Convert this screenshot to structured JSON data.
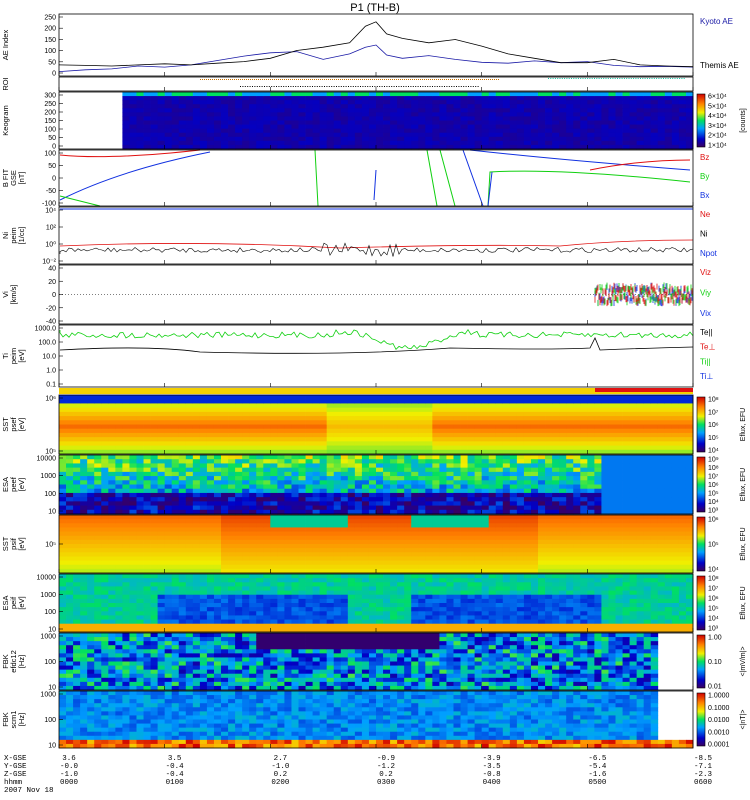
{
  "title": "P1 (TH-B)",
  "colors": {
    "kyoto": "#1a1aa6",
    "themis": "#000000",
    "red": "#e01010",
    "green": "#10d010",
    "blue": "#1030e0",
    "black": "#000000",
    "orange": "#c87000"
  },
  "chart_data": [
    {
      "type": "line",
      "panel": "ae",
      "ylabel": "AE Index",
      "yticks": [
        "250",
        "200",
        "150",
        "100",
        "50",
        "0"
      ],
      "ylim": [
        -20,
        260
      ],
      "x": [
        0,
        0.25,
        0.5,
        0.75,
        1.0,
        1.25,
        1.5,
        1.75,
        2.0,
        2.25,
        2.5,
        2.75,
        2.9,
        3.0,
        3.1,
        3.25,
        3.5,
        3.75,
        4.0,
        4.25,
        4.5,
        4.75,
        5.0,
        5.25,
        5.5,
        5.75,
        6.0
      ],
      "series": [
        {
          "name": "Kyoto AE",
          "color": "#1a1aa6",
          "values": [
            0,
            8,
            12,
            25,
            20,
            30,
            50,
            70,
            85,
            90,
            55,
            80,
            110,
            120,
            75,
            60,
            72,
            55,
            42,
            38,
            48,
            40,
            45,
            28,
            22,
            24,
            20
          ]
        },
        {
          "name": "Themis AE",
          "color": "#000000",
          "values": [
            30,
            28,
            25,
            30,
            35,
            30,
            38,
            45,
            60,
            95,
            110,
            130,
            205,
            225,
            170,
            150,
            130,
            145,
            115,
            80,
            60,
            40,
            40,
            55,
            30,
            25,
            22
          ]
        }
      ]
    },
    {
      "type": "line",
      "panel": "roi",
      "ylabel": "ROI"
    },
    {
      "type": "heatmap",
      "panel": "keogram",
      "ylabel": "Keogram",
      "yticks": [
        "300",
        "250",
        "200",
        "150",
        "100",
        "50",
        "0"
      ],
      "colorbar": {
        "label": "[counts]",
        "ticks": [
          "6×10⁴",
          "5×10⁴",
          "4×10⁴",
          "3×10⁴",
          "2×10⁴",
          "1×10⁴"
        ]
      }
    },
    {
      "type": "line",
      "panel": "bfit",
      "ylabel": "B FIT\nGSE\n[nT]",
      "yticks": [
        "100",
        "50",
        "0",
        "-50",
        "-100"
      ],
      "ylim": [
        -100,
        100
      ],
      "series": [
        {
          "name": "Bz",
          "color": "#e01010"
        },
        {
          "name": "By",
          "color": "#10d010"
        },
        {
          "name": "Bx",
          "color": "#1030e0"
        }
      ]
    },
    {
      "type": "line",
      "panel": "ni",
      "ylabel": "Ni\npeim\n[1/cc]",
      "yticks": [
        "10⁴",
        "10²",
        "10⁰",
        "10⁻²"
      ],
      "series": [
        {
          "name": "Ne",
          "color": "#e01010"
        },
        {
          "name": "Ni",
          "color": "#000000"
        },
        {
          "name": "Npot",
          "color": "#1030e0"
        }
      ]
    },
    {
      "type": "line",
      "panel": "vi",
      "ylabel": "Vi\n[km/s]",
      "yticks": [
        "40",
        "20",
        "0",
        "-20",
        "-40"
      ],
      "ylim": [
        -50,
        50
      ],
      "series": [
        {
          "name": "Viz",
          "color": "#e01010"
        },
        {
          "name": "Viy",
          "color": "#10d010"
        },
        {
          "name": "Vix",
          "color": "#1030e0"
        }
      ]
    },
    {
      "type": "line",
      "panel": "ti",
      "ylabel": "Ti\npeim\n[eV]",
      "yticks": [
        "1000.0",
        "100.0",
        "10.0",
        "1.0",
        "0.1"
      ],
      "series": [
        {
          "name": "Te||",
          "color": "#000000"
        },
        {
          "name": "Te⊥",
          "color": "#e01010"
        },
        {
          "name": "Ti||",
          "color": "#10d010"
        },
        {
          "name": "Ti⊥",
          "color": "#1030e0"
        }
      ]
    },
    {
      "type": "heatmap",
      "panel": "sste",
      "ylabel": "SST\npsef\n[eV]",
      "yticks": [
        "10⁶",
        "10⁵"
      ],
      "colorbar": {
        "label": "Eflux, EFU",
        "ticks": [
          "10⁸",
          "10⁷",
          "10⁶",
          "10⁵",
          "10⁴"
        ]
      }
    },
    {
      "type": "heatmap",
      "panel": "esae",
      "ylabel": "ESA\npeef\n[eV]",
      "yticks": [
        "10000",
        "1000",
        "100",
        "10"
      ],
      "colorbar": {
        "label": "Eflux, EFU",
        "ticks": [
          "10⁹",
          "10⁸",
          "10⁷",
          "10⁶",
          "10⁵",
          "10⁴",
          "10³"
        ]
      }
    },
    {
      "type": "heatmap",
      "panel": "ssti",
      "ylabel": "SST\npsif\n[eV]",
      "yticks": [
        "10⁵"
      ],
      "colorbar": {
        "label": "Eflux, EFU",
        "ticks": [
          "10⁶",
          "10⁵",
          "10⁴"
        ]
      }
    },
    {
      "type": "heatmap",
      "panel": "esai",
      "ylabel": "ESA\npeif\n[eV]",
      "yticks": [
        "10000",
        "1000",
        "100",
        "10"
      ],
      "colorbar": {
        "label": "Eflux, EFU",
        "ticks": [
          "10⁸",
          "10⁷",
          "10⁶",
          "10⁵",
          "10⁴",
          "10³"
        ]
      }
    },
    {
      "type": "heatmap",
      "panel": "fbk1",
      "ylabel": "FBK\nefdc12\n[Hz]",
      "yticks": [
        "1000",
        "100",
        "10"
      ],
      "colorbar": {
        "label": "<|mV/m|>",
        "ticks": [
          "1.00",
          "0.10",
          "0.01"
        ]
      }
    },
    {
      "type": "heatmap",
      "panel": "fbk2",
      "ylabel": "FBK\nscm1\n[Hz]",
      "yticks": [
        "1000",
        "100",
        "10"
      ],
      "colorbar": {
        "label": "<|nT|>",
        "ticks": [
          "1.0000",
          "0.1000",
          "0.0100",
          "0.0010",
          "0.0001"
        ]
      }
    }
  ],
  "footer": {
    "rows": [
      "X-GSE",
      "Y-GSE",
      "Z-GSE",
      "hhmm",
      "2007 Nov 18"
    ],
    "columns": [
      [
        "3.6",
        "-0.0",
        "-1.0",
        "0000"
      ],
      [
        "3.5",
        "-0.4",
        "-0.4",
        "0100"
      ],
      [
        "2.7",
        "-1.0",
        "0.2",
        "0200"
      ],
      [
        "-0.9",
        "-1.2",
        "0.2",
        "0300"
      ],
      [
        "-3.9",
        "-3.5",
        "-0.8",
        "0400"
      ],
      [
        "-6.5",
        "-5.4",
        "-1.6",
        "0500"
      ],
      [
        "-8.5",
        "-7.1",
        "-2.3",
        "0600"
      ]
    ]
  }
}
